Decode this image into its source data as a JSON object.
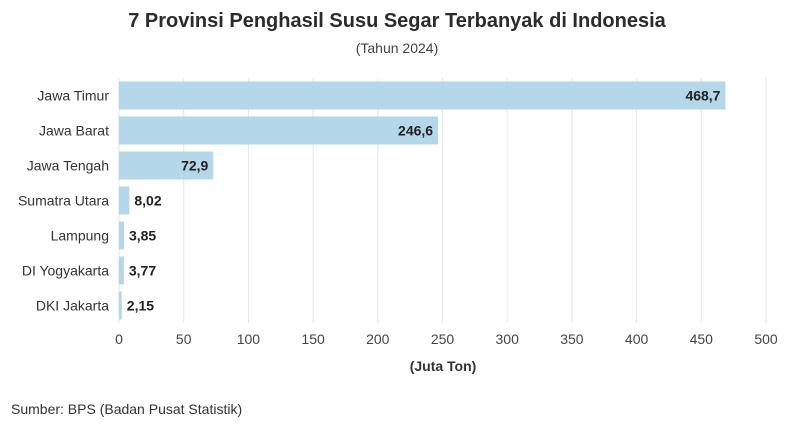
{
  "chart_data": {
    "type": "bar",
    "orientation": "horizontal",
    "title": "7 Provinsi Penghasil Susu Segar Terbanyak di Indonesia",
    "subtitle": "(Tahun 2024)",
    "xlabel": "(Juta Ton)",
    "ylabel": "",
    "xlim": [
      0,
      500
    ],
    "xticks": [
      0,
      50,
      100,
      150,
      200,
      250,
      300,
      350,
      400,
      450,
      500
    ],
    "categories": [
      "Jawa Timur",
      "Jawa Barat",
      "Jawa Tengah",
      "Sumatra Utara",
      "Lampung",
      "DI Yogyakarta",
      "DKI Jakarta"
    ],
    "values": [
      468.7,
      246.6,
      72.9,
      8.02,
      3.85,
      3.77,
      2.15
    ],
    "value_labels": [
      "468,7",
      "246,6",
      "72,9",
      "8,02",
      "3,85",
      "3,77",
      "2,15"
    ],
    "grid": true,
    "bar_color": "#b5d7ea",
    "grid_color": "#e6e6e6"
  },
  "footer": {
    "source": "Sumber: BPS (Badan Pusat Statistik)"
  }
}
